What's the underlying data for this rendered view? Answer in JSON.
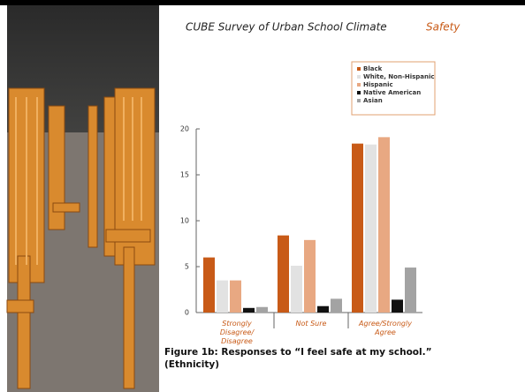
{
  "header": {
    "title": "CUBE Survey of Urban School Climate",
    "section": "Safety"
  },
  "chart_data": {
    "type": "bar",
    "caption": [
      "Figure 1b: Responses to “I feel safe at my school.”",
      "(Ethnicity)"
    ],
    "categories": [
      "Strongly Disagree/ Disagree",
      "Not Sure",
      "Agree/Strongly Agree"
    ],
    "series": [
      {
        "name": "Black",
        "color": "#c85a17",
        "values": [
          6,
          8.4,
          18.4
        ]
      },
      {
        "name": "White, Non-Hispanic",
        "color": "#e2e2e2",
        "values": [
          3.5,
          5.1,
          18.3
        ]
      },
      {
        "name": "Hispanic",
        "color": "#e8a882",
        "values": [
          3.5,
          7.9,
          19.1
        ]
      },
      {
        "name": "Native American",
        "color": "#111111",
        "values": [
          0.5,
          0.7,
          1.4
        ]
      },
      {
        "name": "Asian",
        "color": "#a3a3a3",
        "values": [
          0.6,
          1.5,
          4.9
        ]
      }
    ],
    "ylim": [
      0,
      20
    ],
    "yticks": [
      0,
      5,
      10,
      15,
      20
    ]
  }
}
